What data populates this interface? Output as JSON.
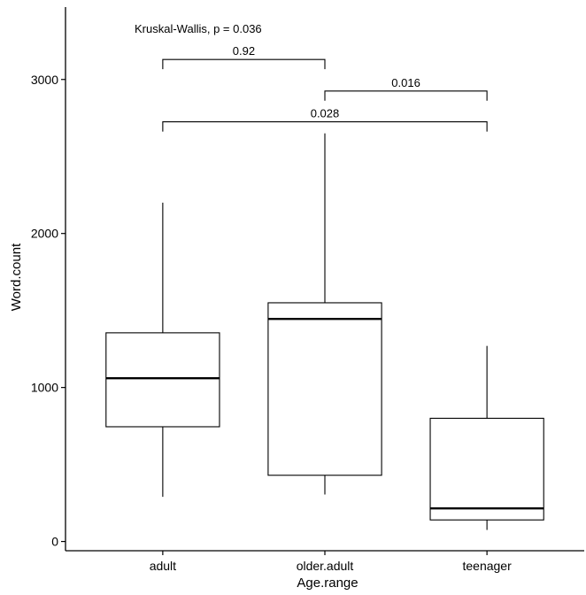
{
  "chart_data": {
    "type": "box",
    "title": "",
    "xlabel": "Age.range",
    "ylabel": "Word.count",
    "ylim": [
      -60,
      3470
    ],
    "yticks": [
      0,
      1000,
      2000,
      3000
    ],
    "ytick_labels": [
      "0",
      "1000",
      "2000",
      "3000"
    ],
    "grid": false,
    "legend": "none",
    "categories": [
      "adult",
      "older.adult",
      "teenager"
    ],
    "boxes": [
      {
        "category": "adult",
        "whisker_low": 290,
        "q1": 745,
        "median": 1060,
        "q3": 1355,
        "whisker_high": 2200
      },
      {
        "category": "older.adult",
        "whisker_low": 305,
        "q1": 430,
        "median": 1445,
        "q3": 1550,
        "whisker_high": 2650
      },
      {
        "category": "teenager",
        "whisker_low": 75,
        "q1": 140,
        "median": 215,
        "q3": 800,
        "whisker_high": 1270
      }
    ],
    "global_test": {
      "label": "Kruskal-Wallis, p = 0.036"
    },
    "comparisons": [
      {
        "from": "adult",
        "to": "older.adult",
        "label": "0.92",
        "y": 3130
      },
      {
        "from": "older.adult",
        "to": "teenager",
        "label": "0.016",
        "y": 2925
      },
      {
        "from": "adult",
        "to": "teenager",
        "label": "0.028",
        "y": 2725
      }
    ]
  }
}
